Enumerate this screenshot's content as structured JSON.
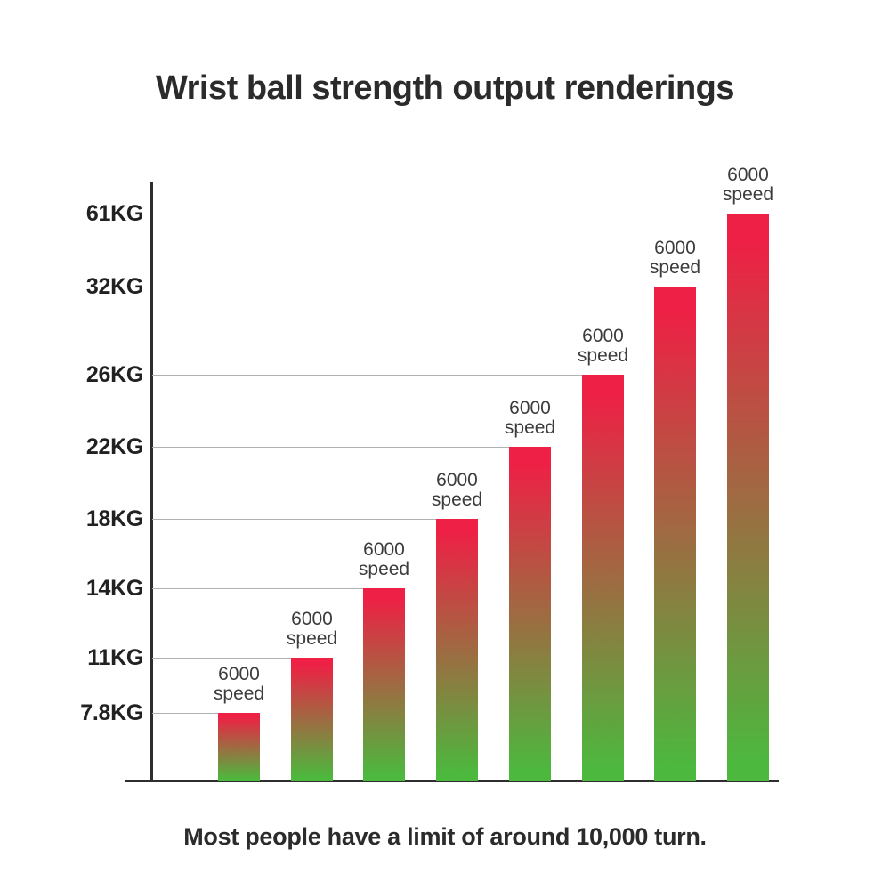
{
  "title": "Wrist ball strength output renderings",
  "caption": "Most people have a limit of around 10,000 turn.",
  "chart_data": {
    "type": "bar",
    "title": "Wrist ball strength output renderings",
    "categories": [
      "6000 speed",
      "6000 speed",
      "6000 speed",
      "6000 speed",
      "6000 speed",
      "6000 speed",
      "6000 speed",
      "6000 speed"
    ],
    "values": [
      7.8,
      11,
      14,
      18,
      22,
      26,
      32,
      61
    ],
    "unit": "KG",
    "y_tick_labels": [
      "7.8KG",
      "11KG",
      "14KG",
      "18KG",
      "22KG",
      "26KG",
      "32KG",
      "61KG"
    ],
    "bar_label_lines": [
      "6000",
      "speed"
    ],
    "bar_gradient_top": "#ee2045",
    "bar_gradient_bottom": "#4cb83e",
    "axis_color": "#2e2e2e",
    "gridline_color": "#b2b2b2",
    "grid": true,
    "legend": false,
    "note": "Most people have a limit of around 10,000 turn."
  }
}
